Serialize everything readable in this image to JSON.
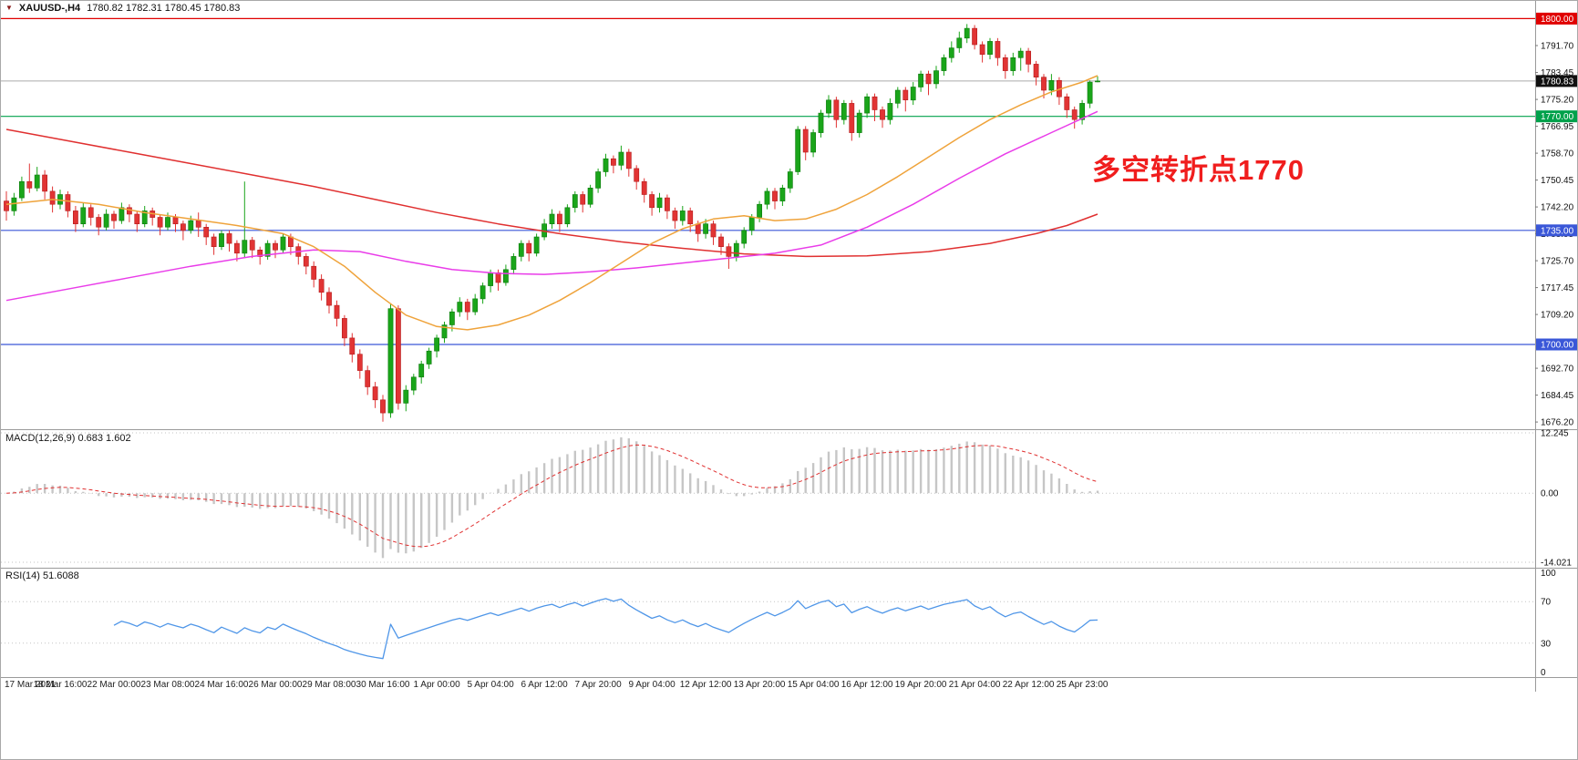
{
  "header": {
    "symbol": "XAUUSD-,H4",
    "ohlc": "1780.82 1782.31 1780.45 1780.83"
  },
  "main_chart": {
    "annotation": {
      "text": "多空转折点1770",
      "color": "#f01d1d"
    },
    "current_price": {
      "label": "1780.83",
      "value": 1780.83
    },
    "levels": [
      {
        "label": "1800.00",
        "value": 1800.0,
        "color": "#e00000"
      },
      {
        "label": "1770.00",
        "value": 1770.0,
        "color": "#00a14b"
      },
      {
        "label": "1735.00",
        "value": 1735.0,
        "color": "#3a57d8"
      },
      {
        "label": "1700.00",
        "value": 1700.0,
        "color": "#3a57d8"
      }
    ],
    "price_ticks": [
      "1791.70",
      "1783.45",
      "1775.20",
      "1766.95",
      "1758.70",
      "1750.45",
      "1742.20",
      "1733.95",
      "1725.70",
      "1717.45",
      "1709.20",
      "1692.70",
      "1684.45",
      "1676.20"
    ],
    "price_range": {
      "min": 1674.0,
      "max": 1801.5
    }
  },
  "chart_data": {
    "type": "candlestick",
    "title": "XAUUSD-,H4",
    "symbol": "XAUUSD",
    "timeframe": "H4",
    "current_bar": {
      "open": 1780.82,
      "high": 1782.31,
      "low": 1780.45,
      "close": 1780.83
    },
    "colors": {
      "up": "#1aa51a",
      "up_border": "#0c7a0c",
      "down": "#e13434",
      "down_border": "#b51c1c"
    },
    "x_label_step": 7,
    "x_labels": [
      "17 Mar 2021",
      "18 Mar 16:00",
      "22 Mar 00:00",
      "23 Mar 08:00",
      "24 Mar 16:00",
      "26 Mar 00:00",
      "29 Mar 08:00",
      "30 Mar 16:00",
      "1 Apr 00:00",
      "5 Apr 04:00",
      "6 Apr 12:00",
      "7 Apr 20:00",
      "9 Apr 04:00",
      "12 Apr 12:00",
      "13 Apr 20:00",
      "15 Apr 04:00",
      "16 Apr 12:00",
      "19 Apr 20:00",
      "21 Apr 04:00",
      "22 Apr 12:00",
      "25 Apr 23:00"
    ],
    "candles_ohlc": [
      [
        1744,
        1747,
        1738,
        1741
      ],
      [
        1741,
        1746.5,
        1739.5,
        1745
      ],
      [
        1745,
        1751.5,
        1744,
        1750
      ],
      [
        1750,
        1755.5,
        1746.5,
        1748
      ],
      [
        1748,
        1754.5,
        1747,
        1752
      ],
      [
        1752,
        1753.5,
        1744.5,
        1747
      ],
      [
        1747,
        1748.5,
        1740.5,
        1743
      ],
      [
        1743,
        1747.5,
        1741.5,
        1746
      ],
      [
        1746,
        1747,
        1739,
        1741
      ],
      [
        1741,
        1742.5,
        1734.5,
        1737
      ],
      [
        1737,
        1743.5,
        1736,
        1742
      ],
      [
        1742,
        1743,
        1736.5,
        1739
      ],
      [
        1739,
        1740,
        1733.5,
        1736
      ],
      [
        1736,
        1741.5,
        1735,
        1740
      ],
      [
        1740,
        1741,
        1735.5,
        1738
      ],
      [
        1738,
        1743.5,
        1737,
        1742
      ],
      [
        1742,
        1743,
        1737.5,
        1740
      ],
      [
        1740,
        1741,
        1734.5,
        1737
      ],
      [
        1737,
        1742.5,
        1736,
        1741
      ],
      [
        1741,
        1742,
        1736.5,
        1739
      ],
      [
        1739,
        1740,
        1733.5,
        1736
      ],
      [
        1736,
        1740.5,
        1735,
        1739
      ],
      [
        1739,
        1740,
        1734.5,
        1737
      ],
      [
        1737,
        1738,
        1732,
        1735
      ],
      [
        1735,
        1739.5,
        1734,
        1738
      ],
      [
        1738,
        1740.5,
        1733,
        1736
      ],
      [
        1736,
        1737,
        1730.5,
        1733
      ],
      [
        1733,
        1734,
        1727.5,
        1730
      ],
      [
        1730,
        1735,
        1729,
        1734
      ],
      [
        1734,
        1735,
        1728.5,
        1731
      ],
      [
        1731,
        1732,
        1725.5,
        1728
      ],
      [
        1728,
        1750,
        1726.5,
        1732
      ],
      [
        1732,
        1733,
        1726.5,
        1729
      ],
      [
        1729,
        1730,
        1724.5,
        1727
      ],
      [
        1727,
        1732,
        1726,
        1731
      ],
      [
        1731,
        1732,
        1726.5,
        1729
      ],
      [
        1729,
        1734,
        1728,
        1733
      ],
      [
        1733,
        1734,
        1727.5,
        1730
      ],
      [
        1730,
        1731,
        1724.5,
        1727
      ],
      [
        1727,
        1728,
        1721.5,
        1724
      ],
      [
        1724,
        1725.5,
        1717.5,
        1720
      ],
      [
        1720,
        1721.5,
        1713.5,
        1716
      ],
      [
        1716,
        1717.5,
        1709.5,
        1712
      ],
      [
        1712,
        1713.5,
        1705.5,
        1708
      ],
      [
        1708,
        1709,
        1699.5,
        1702
      ],
      [
        1702,
        1703.5,
        1694.5,
        1697
      ],
      [
        1697,
        1698.5,
        1689.5,
        1692
      ],
      [
        1692,
        1693.5,
        1684.5,
        1687
      ],
      [
        1687,
        1688.5,
        1680.5,
        1683
      ],
      [
        1683,
        1684.5,
        1676.3,
        1679
      ],
      [
        1679,
        1712.5,
        1677.5,
        1711
      ],
      [
        1711,
        1712,
        1680,
        1682
      ],
      [
        1682,
        1687.5,
        1679.5,
        1686
      ],
      [
        1686,
        1691,
        1684.5,
        1690
      ],
      [
        1690,
        1695,
        1688,
        1694
      ],
      [
        1694,
        1699,
        1692.5,
        1698
      ],
      [
        1698,
        1703,
        1696,
        1702
      ],
      [
        1702,
        1707,
        1700.5,
        1706
      ],
      [
        1706,
        1711,
        1704,
        1710
      ],
      [
        1710,
        1714.5,
        1708.5,
        1713
      ],
      [
        1713,
        1714,
        1707.5,
        1710
      ],
      [
        1710,
        1715.5,
        1709,
        1714
      ],
      [
        1714,
        1719,
        1712.5,
        1718
      ],
      [
        1718,
        1723,
        1716,
        1722
      ],
      [
        1722,
        1723,
        1716.5,
        1719
      ],
      [
        1719,
        1724.5,
        1718,
        1723
      ],
      [
        1723,
        1728,
        1721.5,
        1727
      ],
      [
        1727,
        1732,
        1725.5,
        1731
      ],
      [
        1731,
        1732,
        1725.5,
        1728
      ],
      [
        1728,
        1734,
        1727,
        1733
      ],
      [
        1733,
        1738.5,
        1732,
        1737
      ],
      [
        1737,
        1741.5,
        1735.5,
        1740
      ],
      [
        1740,
        1741,
        1734.5,
        1737
      ],
      [
        1737,
        1743,
        1736,
        1742
      ],
      [
        1742,
        1747,
        1740.5,
        1746
      ],
      [
        1746,
        1747,
        1740.5,
        1743
      ],
      [
        1743,
        1749,
        1742,
        1748
      ],
      [
        1748,
        1754,
        1746.5,
        1753
      ],
      [
        1753,
        1758.5,
        1751.5,
        1757
      ],
      [
        1757,
        1758,
        1752.5,
        1755
      ],
      [
        1755,
        1761,
        1753.5,
        1759
      ],
      [
        1759,
        1760,
        1751.5,
        1754
      ],
      [
        1754,
        1755,
        1747.5,
        1750
      ],
      [
        1750,
        1751,
        1743.5,
        1746
      ],
      [
        1746,
        1747,
        1739.5,
        1742
      ],
      [
        1742,
        1746.5,
        1740.5,
        1745
      ],
      [
        1745,
        1746,
        1738.5,
        1741
      ],
      [
        1741,
        1742,
        1735.5,
        1738
      ],
      [
        1738,
        1742.5,
        1736.5,
        1741
      ],
      [
        1741,
        1742,
        1734.5,
        1737
      ],
      [
        1737,
        1738,
        1731.5,
        1734
      ],
      [
        1734,
        1738.5,
        1732.5,
        1737
      ],
      [
        1737,
        1738,
        1730.5,
        1733
      ],
      [
        1733,
        1734,
        1727.5,
        1730
      ],
      [
        1730,
        1731,
        1723.2,
        1727
      ],
      [
        1727,
        1732,
        1725.5,
        1731
      ],
      [
        1731,
        1736,
        1729.5,
        1735
      ],
      [
        1735,
        1740,
        1733.5,
        1739
      ],
      [
        1739,
        1744,
        1737.5,
        1743
      ],
      [
        1743,
        1748,
        1741.5,
        1747
      ],
      [
        1747,
        1748,
        1741.5,
        1744
      ],
      [
        1744,
        1749,
        1742.5,
        1748
      ],
      [
        1748,
        1754,
        1746.5,
        1753
      ],
      [
        1753,
        1767,
        1752,
        1766
      ],
      [
        1766,
        1767,
        1756.5,
        1759
      ],
      [
        1759,
        1766,
        1757.5,
        1765
      ],
      [
        1765,
        1772,
        1763.5,
        1771
      ],
      [
        1771,
        1776.5,
        1769.5,
        1775
      ],
      [
        1775,
        1776,
        1766.5,
        1769
      ],
      [
        1769,
        1775,
        1767.5,
        1774
      ],
      [
        1774,
        1775,
        1762.5,
        1765
      ],
      [
        1765,
        1772,
        1763.5,
        1771
      ],
      [
        1771,
        1777,
        1769.5,
        1776
      ],
      [
        1776,
        1777,
        1768.5,
        1772
      ],
      [
        1772,
        1773,
        1766.5,
        1769
      ],
      [
        1769,
        1775.5,
        1767.5,
        1774
      ],
      [
        1774,
        1779,
        1772.5,
        1778
      ],
      [
        1778,
        1779,
        1771.5,
        1775
      ],
      [
        1775,
        1780.5,
        1773.5,
        1779
      ],
      [
        1779,
        1784,
        1777.5,
        1783
      ],
      [
        1783,
        1784,
        1776.5,
        1780
      ],
      [
        1780,
        1785.5,
        1778.5,
        1784
      ],
      [
        1784,
        1789,
        1782.5,
        1788
      ],
      [
        1788,
        1793,
        1786.5,
        1791
      ],
      [
        1791,
        1796,
        1789.5,
        1794
      ],
      [
        1794,
        1798.3,
        1792.5,
        1797
      ],
      [
        1797,
        1798,
        1790.5,
        1792
      ],
      [
        1792,
        1793,
        1786.5,
        1789
      ],
      [
        1789,
        1794,
        1787.5,
        1793
      ],
      [
        1793,
        1794,
        1785.5,
        1788
      ],
      [
        1788,
        1789,
        1781.5,
        1784
      ],
      [
        1784,
        1789.5,
        1782.5,
        1788
      ],
      [
        1788,
        1791,
        1784,
        1790
      ],
      [
        1790,
        1791,
        1783.5,
        1786
      ],
      [
        1786,
        1787,
        1779.5,
        1782
      ],
      [
        1782,
        1783,
        1775.5,
        1778
      ],
      [
        1778,
        1783,
        1776.5,
        1781
      ],
      [
        1781,
        1782,
        1773.5,
        1776
      ],
      [
        1776,
        1777,
        1769.5,
        1772
      ],
      [
        1772,
        1773,
        1766.2,
        1769
      ],
      [
        1769,
        1775,
        1767.5,
        1774
      ],
      [
        1774,
        1781,
        1772.5,
        1780.5
      ],
      [
        1780.82,
        1782.31,
        1780.45,
        1780.83
      ]
    ],
    "ma_lines": [
      {
        "name": "ma-slow-red",
        "color": "#e03030",
        "points": [
          [
            0,
            1766
          ],
          [
            8,
            1762.5
          ],
          [
            16,
            1759
          ],
          [
            24,
            1755.5
          ],
          [
            32,
            1752
          ],
          [
            40,
            1748.5
          ],
          [
            48,
            1744.5
          ],
          [
            56,
            1740.5
          ],
          [
            64,
            1737
          ],
          [
            72,
            1734
          ],
          [
            80,
            1731.5
          ],
          [
            88,
            1729.5
          ],
          [
            96,
            1727.8
          ],
          [
            104,
            1727
          ],
          [
            112,
            1727.2
          ],
          [
            120,
            1728.5
          ],
          [
            128,
            1731
          ],
          [
            134,
            1734
          ],
          [
            138,
            1736.5
          ],
          [
            142,
            1740
          ]
        ]
      },
      {
        "name": "ma-mid-magenta",
        "color": "#e93ce9",
        "points": [
          [
            0,
            1713.5
          ],
          [
            8,
            1717
          ],
          [
            16,
            1720.5
          ],
          [
            24,
            1724
          ],
          [
            32,
            1727
          ],
          [
            40,
            1729
          ],
          [
            46,
            1728.5
          ],
          [
            52,
            1725.5
          ],
          [
            58,
            1723
          ],
          [
            64,
            1721.8
          ],
          [
            70,
            1721.5
          ],
          [
            76,
            1722.3
          ],
          [
            82,
            1723.5
          ],
          [
            88,
            1725
          ],
          [
            94,
            1726.5
          ],
          [
            100,
            1728
          ],
          [
            106,
            1730.5
          ],
          [
            112,
            1736
          ],
          [
            118,
            1743
          ],
          [
            124,
            1751
          ],
          [
            130,
            1758.5
          ],
          [
            136,
            1765
          ],
          [
            142,
            1771.5
          ]
        ]
      },
      {
        "name": "ma-fast-orange",
        "color": "#efa33b",
        "points": [
          [
            0,
            1743
          ],
          [
            6,
            1744.5
          ],
          [
            12,
            1743
          ],
          [
            18,
            1740.5
          ],
          [
            24,
            1738.5
          ],
          [
            30,
            1736.5
          ],
          [
            36,
            1734
          ],
          [
            40,
            1730
          ],
          [
            44,
            1724
          ],
          [
            48,
            1716
          ],
          [
            52,
            1709
          ],
          [
            56,
            1705.5
          ],
          [
            60,
            1704.5
          ],
          [
            64,
            1706
          ],
          [
            68,
            1709
          ],
          [
            72,
            1713.5
          ],
          [
            76,
            1719
          ],
          [
            80,
            1725
          ],
          [
            84,
            1731
          ],
          [
            88,
            1735.5
          ],
          [
            92,
            1738.5
          ],
          [
            96,
            1739.5
          ],
          [
            100,
            1738
          ],
          [
            104,
            1738.5
          ],
          [
            108,
            1741.5
          ],
          [
            112,
            1746
          ],
          [
            116,
            1751.5
          ],
          [
            120,
            1757.5
          ],
          [
            124,
            1763.5
          ],
          [
            128,
            1769
          ],
          [
            132,
            1773.5
          ],
          [
            136,
            1777.5
          ],
          [
            140,
            1780.5
          ],
          [
            142,
            1782.5
          ]
        ]
      }
    ]
  },
  "macd_panel": {
    "label": "MACD(12,26,9) 0.683 1.602",
    "params": {
      "fast": 12,
      "slow": 26,
      "signal": 9
    },
    "values": {
      "macd": 0.683,
      "signal": 1.602
    },
    "axis": [
      {
        "label": "12.245",
        "value": 12.245
      },
      {
        "label": "0.00",
        "value": 0
      },
      {
        "label": "-14.021",
        "value": -14.021
      }
    ],
    "range": {
      "min": -14.021,
      "max": 12.245
    },
    "histogram_color": "#c6c6c6",
    "signal_color": "#e03030"
  },
  "rsi_panel": {
    "label": "RSI(14) 51.6088",
    "period": 14,
    "value": 51.6088,
    "axis": [
      {
        "label": "100",
        "value": 100
      },
      {
        "label": "70",
        "value": 70
      },
      {
        "label": "30",
        "value": 30
      },
      {
        "label": "0",
        "value": 0
      }
    ],
    "levels": [
      70,
      30
    ],
    "line_color": "#4f96e8"
  }
}
